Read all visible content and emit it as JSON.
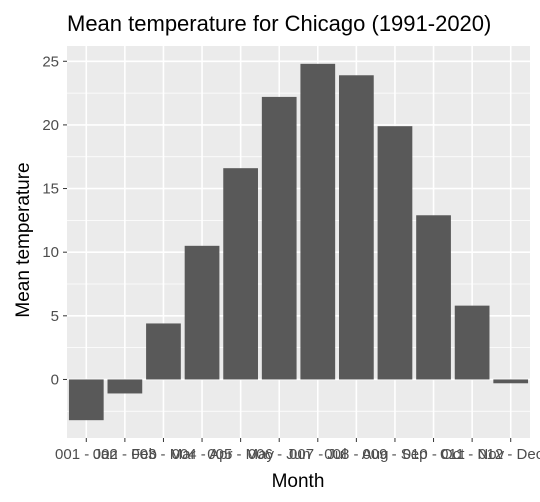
{
  "chart_data": {
    "type": "bar",
    "title": "Mean temperature for Chicago (1991-2020)",
    "xlabel": "Month",
    "ylabel": "Mean temperature",
    "categories": [
      "001 - Jan",
      "002 - Feb",
      "003 - Mar",
      "004 - Apr",
      "005 - May",
      "006 - Jun",
      "007 - Jul",
      "008 - Aug",
      "009 - Sep",
      "010 - Oct",
      "011 - Nov",
      "012 - Dec"
    ],
    "values": [
      -3.2,
      -1.1,
      4.4,
      10.5,
      16.6,
      22.2,
      24.8,
      23.9,
      19.9,
      12.9,
      5.8,
      -0.3
    ],
    "ylim": [
      -4.6,
      26.2
    ],
    "yticks": [
      0,
      5,
      10,
      15,
      20,
      25
    ],
    "grid": true,
    "colors": {
      "bar": "#595959",
      "panel": "#ebebeb",
      "grid": "#ffffff"
    }
  }
}
